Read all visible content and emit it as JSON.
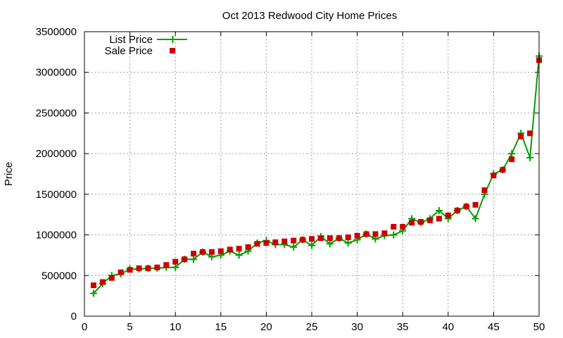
{
  "chart_data": {
    "type": "line",
    "title": "Oct 2013 Redwood City Home Prices",
    "xlabel": "",
    "ylabel": "Price",
    "xlim": [
      0,
      50
    ],
    "ylim": [
      0,
      3500000
    ],
    "xticks": [
      0,
      5,
      10,
      15,
      20,
      25,
      30,
      35,
      40,
      45,
      50
    ],
    "yticks": [
      0,
      500000,
      1000000,
      1500000,
      2000000,
      2500000,
      3000000,
      3500000
    ],
    "grid": true,
    "legend_position": "top-left",
    "x": [
      1,
      2,
      3,
      4,
      5,
      6,
      7,
      8,
      9,
      10,
      11,
      12,
      13,
      14,
      15,
      16,
      17,
      18,
      19,
      20,
      21,
      22,
      23,
      24,
      25,
      26,
      27,
      28,
      29,
      30,
      31,
      32,
      33,
      34,
      35,
      36,
      37,
      38,
      39,
      40,
      41,
      42,
      43,
      44,
      45,
      46,
      47,
      48,
      49,
      50
    ],
    "series": [
      {
        "name": "List Price",
        "style": "line-plus",
        "color": "#00a000",
        "values": [
          280000,
          400000,
          500000,
          520000,
          580000,
          580000,
          590000,
          590000,
          600000,
          600000,
          700000,
          700000,
          790000,
          730000,
          750000,
          800000,
          750000,
          800000,
          900000,
          930000,
          880000,
          880000,
          850000,
          940000,
          870000,
          980000,
          890000,
          960000,
          900000,
          940000,
          1010000,
          950000,
          990000,
          1000000,
          1050000,
          1200000,
          1150000,
          1200000,
          1300000,
          1200000,
          1300000,
          1350000,
          1200000,
          1500000,
          1750000,
          1800000,
          2000000,
          2250000,
          1950000,
          3200000
        ]
      },
      {
        "name": "Sale Price",
        "style": "square-marker",
        "color": "#cc0000",
        "values": [
          380000,
          420000,
          470000,
          540000,
          570000,
          590000,
          590000,
          600000,
          630000,
          670000,
          700000,
          770000,
          790000,
          790000,
          800000,
          820000,
          830000,
          850000,
          890000,
          900000,
          910000,
          920000,
          930000,
          940000,
          950000,
          960000,
          960000,
          960000,
          970000,
          990000,
          1010000,
          1010000,
          1020000,
          1100000,
          1100000,
          1150000,
          1160000,
          1180000,
          1200000,
          1240000,
          1300000,
          1350000,
          1370000,
          1550000,
          1730000,
          1800000,
          1930000,
          2210000,
          2250000,
          3150000
        ]
      }
    ]
  }
}
